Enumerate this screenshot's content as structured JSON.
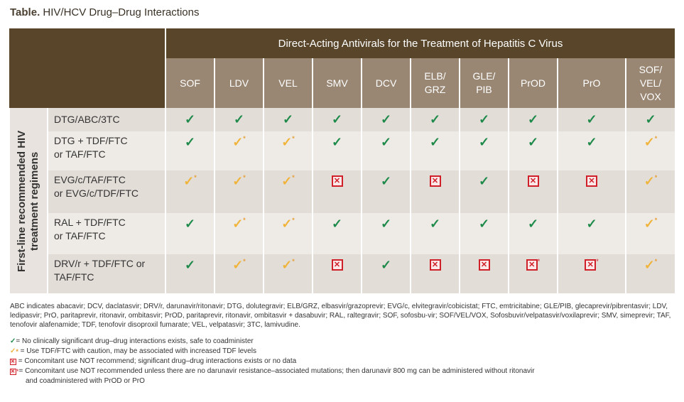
{
  "title": {
    "bold": "Table.",
    "text": "HIV/HCV Drug–Drug Interactions"
  },
  "header": {
    "group": "Direct-Acting Antivirals for the Treatment of Hepatitis C Virus",
    "columns": [
      "SOF",
      "LDV",
      "VEL",
      "SMV",
      "DCV",
      "ELB/\nGRZ",
      "GLE/\nPIB",
      "PrOD",
      "PrO",
      "SOF/\nVEL/\nVOX"
    ]
  },
  "row_group_label": "First-line recommended HIV treatment regimens",
  "rows": [
    {
      "label": "DTG/ABC/3TC",
      "cells": [
        "ok",
        "ok",
        "ok",
        "ok",
        "ok",
        "ok",
        "ok",
        "ok",
        "ok",
        "ok"
      ]
    },
    {
      "label": "DTG + TDF/FTC\nor TAF/FTC",
      "cells": [
        "ok",
        "caution",
        "caution",
        "ok",
        "ok",
        "ok",
        "ok",
        "ok",
        "ok",
        "caution"
      ]
    },
    {
      "label": "EVG/c/TAF/FTC\nor EVG/c/TDF/FTC",
      "cells": [
        "caution",
        "caution",
        "caution",
        "no",
        "ok",
        "no",
        "ok",
        "no",
        "no",
        "caution"
      ]
    },
    {
      "label": "RAL + TDF/FTC\nor TAF/FTC",
      "cells": [
        "ok",
        "caution",
        "caution",
        "ok",
        "ok",
        "ok",
        "ok",
        "ok",
        "ok",
        "caution"
      ]
    },
    {
      "label": "DRV/r + TDF/FTC or\nTAF/FTC",
      "cells": [
        "ok",
        "caution",
        "caution",
        "no",
        "ok",
        "no",
        "no",
        "no-star",
        "no-star",
        "caution"
      ]
    }
  ],
  "abbreviations": "ABC indicates abacavir; DCV, daclatasvir; DRV/r, darunavir/ritonavir; DTG, dolutegravir; ELB/GRZ, elbasvir/grazoprevir; EVG/c, elvitegravir/cobicistat; FTC, emtricitabine; GLE/PIB, glecaprevir/pibrentasvir; LDV, ledipasvir; PrO, paritaprevir, ritonavir, ombitasvir; PrOD, paritaprevir, ritonavir, ombitasvir + dasabuvir; RAL, raltegravir; SOF, sofosbu-vir; SOF/VEL/VOX, Sofosbuvir/velpatasvir/voxilaprevir; SMV, simeprevir; TAF, tenofovir alafenamide; TDF, tenofovir disoproxil fumarate; VEL, velpatasvir; 3TC, lamivudine.",
  "legend": [
    {
      "symbol": "ok",
      "text": "= No clinically significant drug–drug interactions exists, safe to coadminister"
    },
    {
      "symbol": "caution",
      "text": " = Use TDF/FTC with caution, may be associated with increased TDF levels"
    },
    {
      "symbol": "no",
      "text": " = Concomitant use NOT recommend; significant drug–drug interactions exists or no data"
    },
    {
      "symbol": "no-star",
      "text": "= Concomitant use NOT recommended unless there are no darunavir resistance–associated mutations; then darunavir 800 mg can be administered without ritonavir",
      "text2": "and coadministered with PrOD or PrO"
    }
  ],
  "colors": {
    "header_dark": "#58452a",
    "header_light": "#998774",
    "row_odd": "#e3ddd8",
    "row_even": "#eeebe6",
    "ok": "#1e8a4a",
    "caution": "#f0b43a",
    "no": "#d0202a"
  },
  "icons": {
    "ok": "check-green",
    "caution": "check-yellow-asterisk",
    "no": "red-x-box",
    "no-star": "red-x-box-asterisk"
  }
}
